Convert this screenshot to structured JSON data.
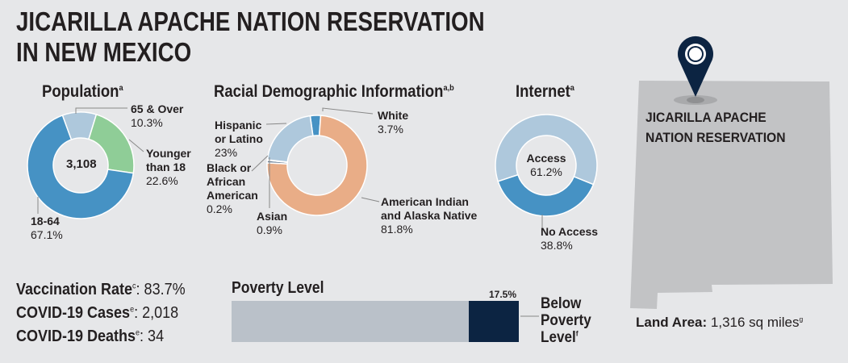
{
  "title": {
    "line1": "JICARILLA APACHE NATION RESERVATION",
    "line2": "IN NEW MEXICO"
  },
  "population": {
    "heading": "Population",
    "heading_sup": "a",
    "total": "3,108",
    "segments": [
      {
        "label": "65 & Over",
        "value": 10.3,
        "text": "10.3%",
        "color": "#aec8dc"
      },
      {
        "label": "Younger than 18",
        "value": 22.6,
        "text": "22.6%",
        "color": "#8fcd97"
      },
      {
        "label": "18-64",
        "value": 67.1,
        "text": "67.1%",
        "color": "#4692c4"
      }
    ],
    "label_younger_1": "Younger",
    "label_younger_2": "than 18"
  },
  "race": {
    "heading": "Racial Demographic Information",
    "heading_sup": "a,b",
    "segments": [
      {
        "label": "White",
        "value": 3.7,
        "text": "3.7%",
        "color": "#4692c4"
      },
      {
        "label": "American Indian and Alaska Native",
        "value": 81.8,
        "text": "81.8%",
        "color": "#e9ad87"
      },
      {
        "label": "Asian",
        "value": 0.9,
        "text": "0.9%",
        "color": "#6b7f95"
      },
      {
        "label": "Black or African American",
        "value": 0.2,
        "text": "0.2%",
        "color": "#b5d9b5"
      },
      {
        "label": "Hispanic or Latino",
        "value": 23,
        "text": "23%",
        "color": "#aec8dc"
      }
    ],
    "aian_1": "American Indian",
    "aian_2": "and Alaska Native",
    "hisp_1": "Hispanic",
    "hisp_2": "or Latino",
    "black_1": "Black or",
    "black_2": "African",
    "black_3": "American"
  },
  "internet": {
    "heading": "Internet",
    "heading_sup": "a",
    "segments": [
      {
        "label": "No Access",
        "value": 38.8,
        "text": "38.8%",
        "color": "#4692c4"
      },
      {
        "label": "Access",
        "value": 61.2,
        "text": "61.2%",
        "color": "#aec8dc"
      }
    ]
  },
  "stats": {
    "vacc_label": "Vaccination Rate",
    "vacc_sup": "c",
    "vacc_value": ": 83.7%",
    "cases_label": "COVID-19 Cases",
    "cases_sup": "e",
    "cases_value": ": 2,018",
    "deaths_label": "COVID-19 Deaths",
    "deaths_sup": "e",
    "deaths_value": ": 34"
  },
  "poverty": {
    "heading": "Poverty Level",
    "value": 17.5,
    "value_text": "17.5%",
    "label_1": "Below",
    "label_2": "Poverty",
    "label_3": "Level",
    "label_sup": "f",
    "color": "#0c2442",
    "rest_color": "#bac1c9"
  },
  "map": {
    "place_1": "JICARILLA APACHE",
    "place_2": "NATION RESERVATION",
    "land_label": "Land Area:",
    "land_value": " 1,316 sq miles",
    "land_sup": "g"
  }
}
